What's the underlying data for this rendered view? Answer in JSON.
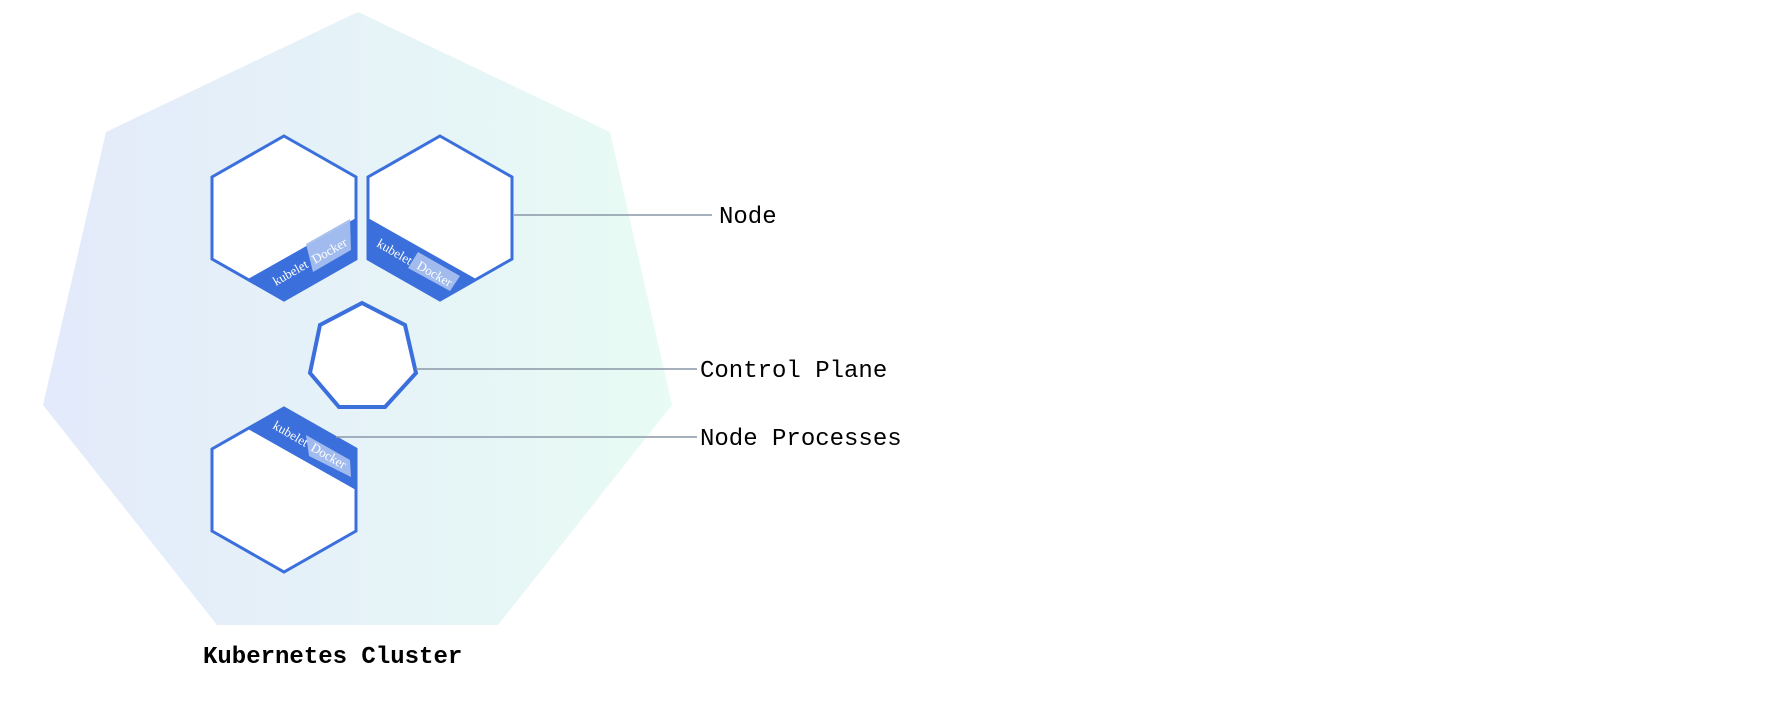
{
  "colors": {
    "accent": "#3b6fdc",
    "accent_light": "#a7bfee",
    "cluster_left": "#e3eafb",
    "cluster_right": "#e8fbf4",
    "leader": "#8a97a8",
    "text": "#000000"
  },
  "diagram": {
    "cluster_title": "Kubernetes Cluster",
    "labels": {
      "node": "Node",
      "control_plane": "Control Plane",
      "node_processes": "Node Processes"
    },
    "process_labels": {
      "kubelet": "kubelet",
      "docker": "Docker"
    }
  }
}
